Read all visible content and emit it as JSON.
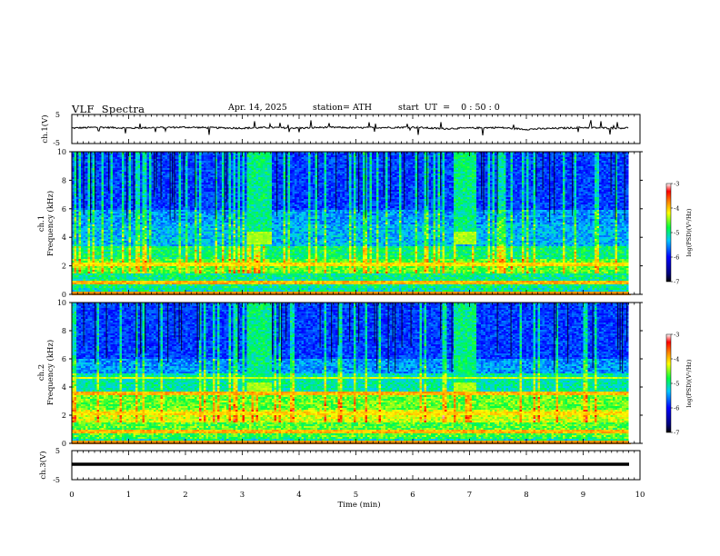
{
  "header": {
    "title": "VLF  Spectra",
    "date": "Apr. 14, 2025",
    "station": "station= ATH",
    "start": "start  UT  =    0 : 50 : 0"
  },
  "chart_data": [
    {
      "type": "line",
      "panel": "ch1-time-series",
      "ylabel": "ch.1(V)",
      "ylim": [
        -5,
        5
      ],
      "yticks": [
        "5",
        "-5"
      ],
      "xlim": [
        0,
        10
      ],
      "series": [
        {
          "values_description_hidden": true,
          "x": [
            0,
            0.5,
            1,
            1.5,
            2,
            2.5,
            3,
            3.5,
            4,
            4.5,
            5,
            5.5,
            6,
            6.5,
            7,
            7.5,
            8,
            8.5,
            9,
            9.5,
            9.8
          ],
          "y": [
            0.0,
            0.3,
            0.0,
            0.2,
            0.3,
            0.1,
            0.0,
            0.2,
            0.0,
            0.3,
            0.1,
            0.2,
            0.3,
            -0.2,
            0.0,
            0.2,
            -0.4,
            -0.1,
            0.2,
            0.0,
            0.1
          ]
        }
      ]
    },
    {
      "type": "heatmap",
      "panel": "ch1-spectrogram",
      "ylabel": "ch.1 Frequency (kHz)",
      "ylim": [
        0,
        10
      ],
      "yticks": [
        "10",
        "8",
        "6",
        "4",
        "2",
        "0"
      ],
      "xlim": [
        0,
        10
      ],
      "colorbar": {
        "label": "log(PSD) (V²/Hz)",
        "range": [
          -7,
          -3
        ],
        "ticks": [
          "-3",
          "-4",
          "-5",
          "-6",
          "-7"
        ]
      },
      "bursts_min": [
        [
          3.05,
          3.5
        ],
        [
          6.7,
          7.1
        ]
      ]
    },
    {
      "type": "heatmap",
      "panel": "ch2-spectrogram",
      "ylabel": "ch.2 Frequency (kHz)",
      "ylim": [
        0,
        10
      ],
      "yticks": [
        "10",
        "8",
        "6",
        "4",
        "2",
        "0"
      ],
      "xlim": [
        0,
        10
      ],
      "colorbar": {
        "label": "log(PSD) (V²/Hz)",
        "range": [
          -7,
          -3
        ],
        "ticks": [
          "-3",
          "-4",
          "-5",
          "-6",
          "-7"
        ]
      },
      "bursts_min": [
        [
          3.05,
          3.5
        ],
        [
          6.7,
          7.1
        ]
      ]
    },
    {
      "type": "line",
      "panel": "ch3-time-series",
      "ylabel": "ch.3(V)",
      "ylim": [
        -5,
        5
      ],
      "yticks": [
        "5",
        "-5"
      ],
      "xlim": [
        0,
        10
      ],
      "series": [
        {
          "x": [
            0,
            9.8
          ],
          "y": [
            0,
            0
          ]
        }
      ]
    }
  ],
  "xaxis": {
    "label": "Time  (min)",
    "ticks": [
      "0",
      "1",
      "2",
      "3",
      "4",
      "5",
      "6",
      "7",
      "8",
      "9",
      "10"
    ]
  },
  "colorbar_labels": {
    "tick_3": "-3",
    "tick_4": "-4",
    "tick_5": "-5",
    "tick_6": "-6",
    "tick_7": "-7",
    "label": "log(PSD)(V²/Hz)"
  },
  "colors": {
    "trace": "#000000",
    "spectrogram_background": "#0b1e8c"
  }
}
